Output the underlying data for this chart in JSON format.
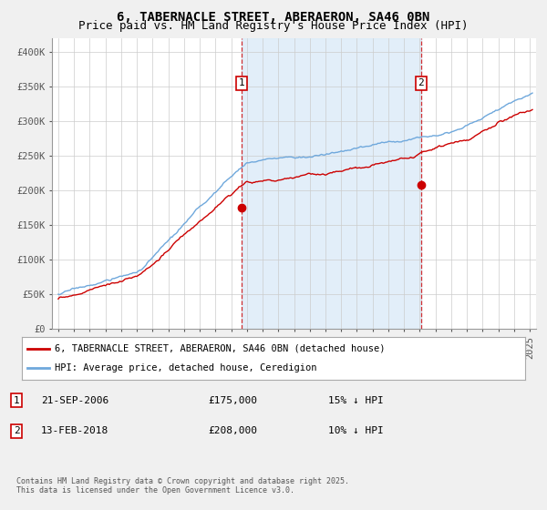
{
  "title": "6, TABERNACLE STREET, ABERAERON, SA46 0BN",
  "subtitle": "Price paid vs. HM Land Registry's House Price Index (HPI)",
  "ylabel_ticks": [
    "£0",
    "£50K",
    "£100K",
    "£150K",
    "£200K",
    "£250K",
    "£300K",
    "£350K",
    "£400K"
  ],
  "ytick_values": [
    0,
    50000,
    100000,
    150000,
    200000,
    250000,
    300000,
    350000,
    400000
  ],
  "ylim": [
    0,
    420000
  ],
  "hpi_color": "#6fa8dc",
  "hpi_fill_color": "#d6e8f7",
  "price_color": "#cc0000",
  "vline_color": "#cc0000",
  "sale1_date": "21-SEP-2006",
  "sale1_price": "£175,000",
  "sale1_hpi": "15% ↓ HPI",
  "sale2_date": "13-FEB-2018",
  "sale2_price": "£208,000",
  "sale2_hpi": "10% ↓ HPI",
  "legend_label_red": "6, TABERNACLE STREET, ABERAERON, SA46 0BN (detached house)",
  "legend_label_blue": "HPI: Average price, detached house, Ceredigion",
  "footer": "Contains HM Land Registry data © Crown copyright and database right 2025.\nThis data is licensed under the Open Government Licence v3.0.",
  "bg_color": "#f0f0f0",
  "plot_bg_color": "#ffffff",
  "grid_color": "#cccccc",
  "title_fontsize": 10,
  "subtitle_fontsize": 9,
  "tick_fontsize": 7.5,
  "legend_fontsize": 7.5,
  "footer_fontsize": 6
}
